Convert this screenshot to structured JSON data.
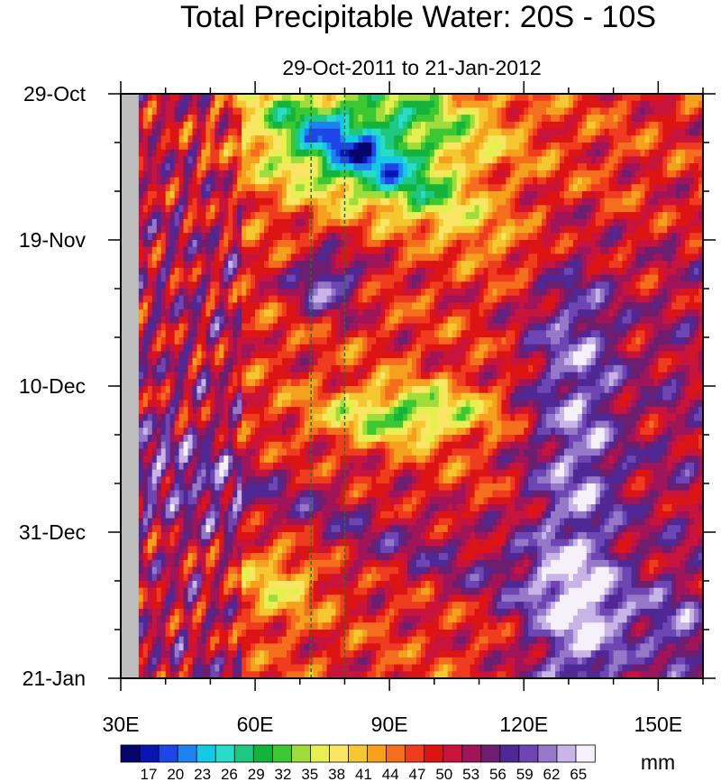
{
  "chart_data": {
    "type": "heatmap",
    "title": "Total Precipitable Water: 20S - 10S",
    "subtitle": "29-Oct-2011 to 21-Jan-2012",
    "xlabel": "",
    "ylabel": "",
    "x_range": [
      30,
      160
    ],
    "x_ticks": [
      {
        "value": 30,
        "label": "30E"
      },
      {
        "value": 60,
        "label": "60E"
      },
      {
        "value": 90,
        "label": "90E"
      },
      {
        "value": 120,
        "label": "120E"
      },
      {
        "value": 150,
        "label": "150E"
      }
    ],
    "y_range": [
      "29-Oct-2011",
      "21-Jan-2012"
    ],
    "y_ticks": [
      {
        "date": "2011-10-29",
        "label": "29-Oct"
      },
      {
        "date": "2011-11-19",
        "label": "19-Nov"
      },
      {
        "date": "2011-12-10",
        "label": "10-Dec"
      },
      {
        "date": "2011-12-31",
        "label": "31-Dec"
      },
      {
        "date": "2012-01-21",
        "label": "21-Jan"
      }
    ],
    "reference_lines_x": [
      72.5,
      80
    ],
    "colorbar": {
      "units": "mm",
      "labels": [
        "17",
        "20",
        "23",
        "26",
        "29",
        "32",
        "35",
        "38",
        "41",
        "44",
        "47",
        "50",
        "53",
        "56",
        "59",
        "62",
        "65"
      ],
      "colors": [
        "#05056b",
        "#0a14b4",
        "#1e46e6",
        "#1e82f0",
        "#14c8e6",
        "#28dcc8",
        "#1ec882",
        "#14b43c",
        "#3cc832",
        "#a0dc3c",
        "#e6f050",
        "#fae664",
        "#f5c832",
        "#f5a01e",
        "#f56e1e",
        "#f03c1e",
        "#dc1414",
        "#c8143c",
        "#a0145a",
        "#6e1e6e",
        "#502896",
        "#6e46b4",
        "#9678c8",
        "#c8b4e6",
        "#f5f0fa"
      ]
    }
  }
}
